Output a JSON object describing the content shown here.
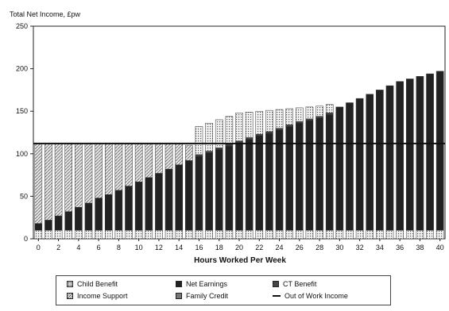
{
  "chart_data": {
    "type": "bar",
    "title": "Total Net Income, £pw",
    "xlabel": "Hours Worked Per Week",
    "ylabel": "",
    "ylim": [
      0,
      250
    ],
    "yticks": [
      0,
      50,
      100,
      150,
      200,
      250
    ],
    "xticks": [
      0,
      2,
      4,
      6,
      8,
      10,
      12,
      14,
      16,
      18,
      20,
      22,
      24,
      26,
      28,
      30,
      32,
      34,
      36,
      38,
      40
    ],
    "x": [
      0,
      1,
      2,
      3,
      4,
      5,
      6,
      7,
      8,
      9,
      10,
      11,
      12,
      13,
      14,
      15,
      16,
      17,
      18,
      19,
      20,
      21,
      22,
      23,
      24,
      25,
      26,
      27,
      28,
      29,
      30,
      31,
      32,
      33,
      34,
      35,
      36,
      37,
      38,
      39,
      40
    ],
    "stacked": true,
    "series": [
      {
        "name": "Child Benefit",
        "color": "#bbbbbb",
        "pattern": "dots",
        "values": [
          10,
          10,
          10,
          10,
          10,
          10,
          10,
          10,
          10,
          10,
          10,
          10,
          10,
          10,
          10,
          10,
          10,
          10,
          10,
          10,
          10,
          10,
          10,
          10,
          10,
          10,
          10,
          10,
          10,
          10,
          10,
          10,
          10,
          10,
          10,
          10,
          10,
          10,
          10,
          10,
          10
        ]
      },
      {
        "name": "Net Earnings",
        "color": "#222222",
        "pattern": "solid",
        "values": [
          8,
          12,
          17,
          22,
          27,
          32,
          38,
          42,
          47,
          52,
          57,
          62,
          67,
          72,
          77,
          82,
          87,
          91,
          95,
          99,
          103,
          107,
          111,
          114,
          118,
          122,
          126,
          129,
          132,
          136,
          145,
          150,
          155,
          160,
          165,
          170,
          175,
          178,
          181,
          184,
          187
        ]
      },
      {
        "name": "CT Benefit",
        "color": "#444444",
        "pattern": "solid",
        "values": [
          0,
          0,
          0,
          0,
          0,
          0,
          0,
          0,
          0,
          0,
          0,
          0,
          0,
          0,
          0,
          0,
          2,
          2,
          2,
          2,
          2,
          2,
          2,
          2,
          2,
          2,
          2,
          2,
          2,
          2,
          0,
          0,
          0,
          0,
          0,
          0,
          0,
          0,
          0,
          0,
          0
        ]
      },
      {
        "name": "Income Support",
        "color": "#cccccc",
        "pattern": "hatch",
        "values": [
          94,
          90,
          85,
          80,
          75,
          70,
          64,
          60,
          55,
          50,
          45,
          40,
          35,
          30,
          25,
          18,
          0,
          0,
          0,
          0,
          0,
          0,
          0,
          0,
          0,
          0,
          0,
          0,
          0,
          0,
          0,
          0,
          0,
          0,
          0,
          0,
          0,
          0,
          0,
          0,
          0
        ]
      },
      {
        "name": "Family Credit",
        "color": "#aaaaaa",
        "pattern": "dots",
        "values": [
          0,
          0,
          0,
          0,
          0,
          0,
          0,
          0,
          0,
          0,
          0,
          0,
          0,
          0,
          0,
          0,
          33,
          33,
          33,
          33,
          33,
          30,
          27,
          25,
          22,
          19,
          16,
          14,
          12,
          10,
          0,
          0,
          0,
          0,
          0,
          0,
          0,
          0,
          0,
          0,
          0
        ]
      }
    ],
    "out_of_work_income": {
      "name": "Out of Work Income",
      "value": 112
    },
    "legend_position": "bottom",
    "grid": false
  },
  "legend": {
    "items": [
      {
        "key": "child",
        "label": "Child Benefit"
      },
      {
        "key": "earn",
        "label": "Net Earnings"
      },
      {
        "key": "ct",
        "label": "CT Benefit"
      },
      {
        "key": "is",
        "label": "Income Support"
      },
      {
        "key": "fc",
        "label": "Family Credit"
      },
      {
        "key": "oow",
        "label": "Out of Work Income"
      }
    ]
  }
}
